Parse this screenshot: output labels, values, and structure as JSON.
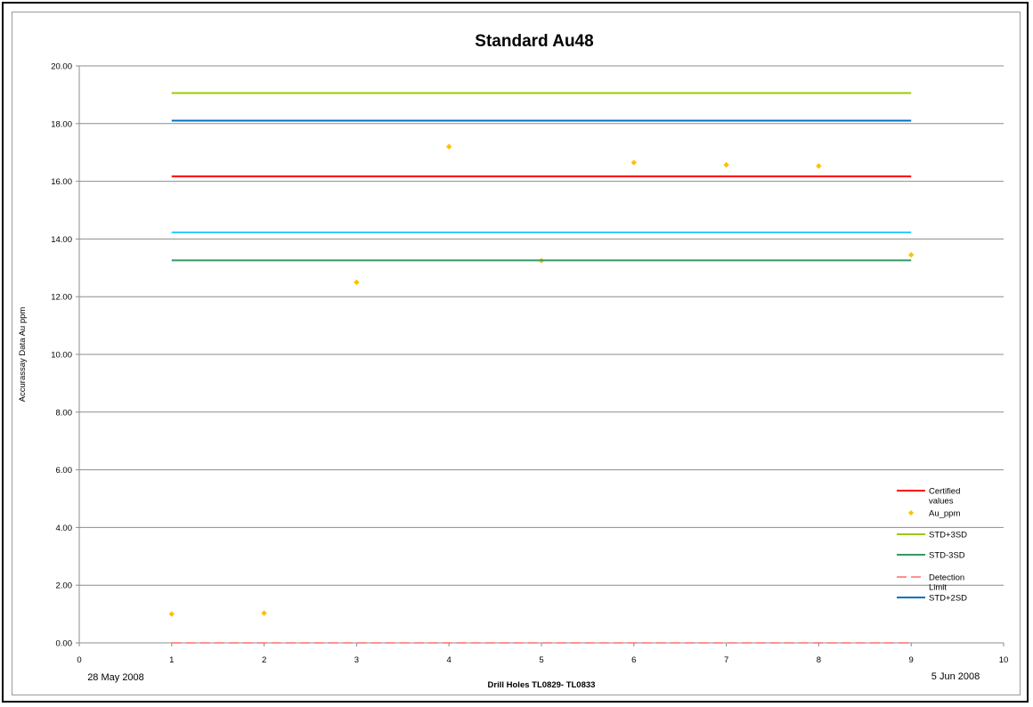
{
  "chart_data": {
    "type": "line",
    "title": "Standard  Au48",
    "xlabel": "Drill Holes TL0829- TL0833",
    "ylabel": "Accurassay Data Au ppm",
    "xlim": [
      0,
      10
    ],
    "ylim": [
      0,
      20
    ],
    "x_ticks": [
      0,
      1,
      2,
      3,
      4,
      5,
      6,
      7,
      8,
      9,
      10
    ],
    "y_ticks": [
      "0.00",
      "2.00",
      "4.00",
      "6.00",
      "8.00",
      "10.00",
      "12.00",
      "14.00",
      "16.00",
      "18.00",
      "20.00"
    ],
    "grid": "horizontal",
    "legend_position": "bottom-right",
    "date_start_label": "28 May 2008",
    "date_end_label": "5 Jun 2008",
    "series": [
      {
        "name": "Certified values",
        "kind": "line",
        "color": "#ff0000",
        "x": [
          1,
          9
        ],
        "values": [
          16.17,
          16.17
        ]
      },
      {
        "name": "Au_ppm",
        "kind": "scatter",
        "color": "#ffc000",
        "x": [
          1,
          2,
          3,
          4,
          5,
          6,
          7,
          8,
          9
        ],
        "values": [
          1.0,
          1.03,
          12.5,
          17.2,
          13.25,
          16.65,
          16.57,
          16.53,
          13.45
        ]
      },
      {
        "name": "STD+3SD",
        "kind": "line",
        "color": "#99cc00",
        "x": [
          1,
          9
        ],
        "values": [
          19.06,
          19.06
        ]
      },
      {
        "name": "STD-3SD",
        "kind": "line",
        "color": "#339966",
        "x": [
          1,
          9
        ],
        "values": [
          13.26,
          13.26
        ]
      },
      {
        "name": "Detection Limit",
        "kind": "dashed",
        "color": "#ff5050",
        "x": [
          1,
          9
        ],
        "values": [
          0.0,
          0.0
        ]
      },
      {
        "name": "STD+2SD",
        "kind": "line",
        "color": "#0070c0",
        "x": [
          1,
          9
        ],
        "values": [
          18.1,
          18.1
        ]
      },
      {
        "name": "",
        "kind": "line",
        "color": "#33ccff",
        "x": [
          1,
          9
        ],
        "values": [
          14.23,
          14.23
        ]
      }
    ],
    "legend": [
      {
        "label_lines": [
          "Certified",
          "values"
        ],
        "series": 0
      },
      {
        "label_lines": [
          "Au_ppm"
        ],
        "series": 1
      },
      {
        "label_lines": [
          "STD+3SD"
        ],
        "series": 2
      },
      {
        "label_lines": [
          "STD-3SD"
        ],
        "series": 3
      },
      {
        "label_lines": [
          "Detection",
          "Limit"
        ],
        "series": 4
      },
      {
        "label_lines": [
          "STD+2SD"
        ],
        "series": 5
      }
    ]
  }
}
